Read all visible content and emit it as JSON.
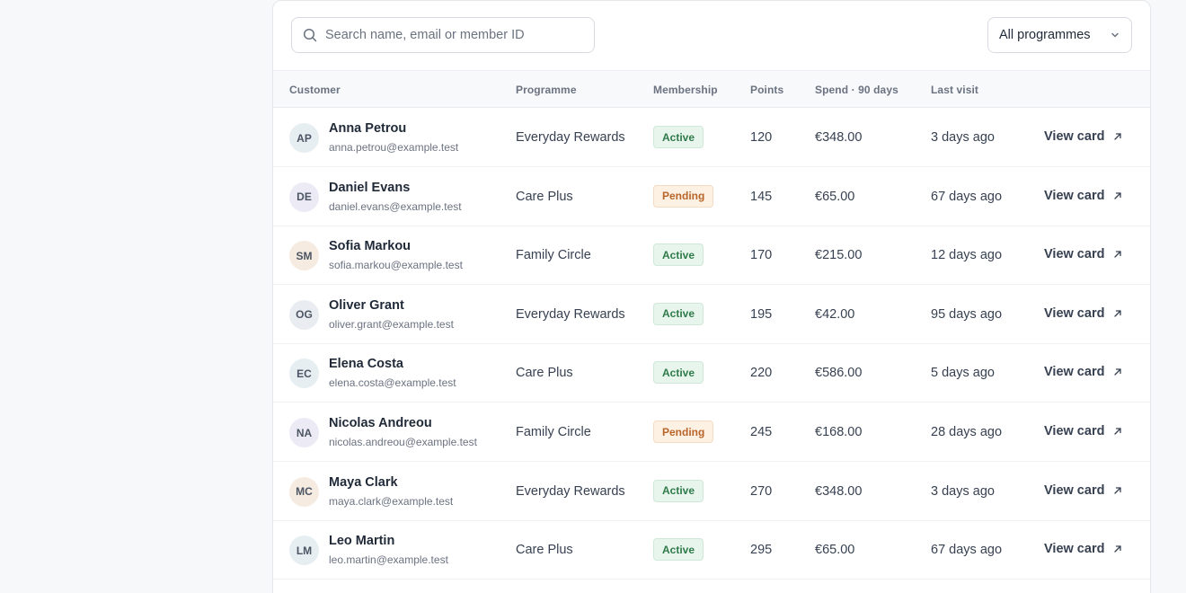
{
  "toolbar": {
    "search_placeholder": "Search name, email or member ID",
    "programme_filter": "All programmes"
  },
  "columns": {
    "customer": "Customer",
    "programme": "Programme",
    "membership": "Membership",
    "points": "Points",
    "spend": "Spend · 90 days",
    "last_visit": "Last visit"
  },
  "rows": [
    {
      "initials": "AP",
      "name": "Anna Petrou",
      "email": "anna.petrou@example.test",
      "programme": "Everyday Rewards",
      "membership": "Active",
      "points": "120",
      "spend": "€348.00",
      "last_visit": "3 days ago",
      "action": "View card",
      "avatar_color": "#e6eef2"
    },
    {
      "initials": "DE",
      "name": "Daniel Evans",
      "email": "daniel.evans@example.test",
      "programme": "Care Plus",
      "membership": "Pending",
      "points": "145",
      "spend": "€65.00",
      "last_visit": "67 days ago",
      "action": "View card",
      "avatar_color": "#ecebf5"
    },
    {
      "initials": "SM",
      "name": "Sofia Markou",
      "email": "sofia.markou@example.test",
      "programme": "Family Circle",
      "membership": "Active",
      "points": "170",
      "spend": "€215.00",
      "last_visit": "12 days ago",
      "action": "View card",
      "avatar_color": "#f6ebe0"
    },
    {
      "initials": "OG",
      "name": "Oliver Grant",
      "email": "oliver.grant@example.test",
      "programme": "Everyday Rewards",
      "membership": "Active",
      "points": "195",
      "spend": "€42.00",
      "last_visit": "95 days ago",
      "action": "View card",
      "avatar_color": "#e9ecf0"
    },
    {
      "initials": "EC",
      "name": "Elena Costa",
      "email": "elena.costa@example.test",
      "programme": "Care Plus",
      "membership": "Active",
      "points": "220",
      "spend": "€586.00",
      "last_visit": "5 days ago",
      "action": "View card",
      "avatar_color": "#e6eef2"
    },
    {
      "initials": "NA",
      "name": "Nicolas Andreou",
      "email": "nicolas.andreou@example.test",
      "programme": "Family Circle",
      "membership": "Pending",
      "points": "245",
      "spend": "€168.00",
      "last_visit": "28 days ago",
      "action": "View card",
      "avatar_color": "#ecebf5"
    },
    {
      "initials": "MC",
      "name": "Maya Clark",
      "email": "maya.clark@example.test",
      "programme": "Everyday Rewards",
      "membership": "Active",
      "points": "270",
      "spend": "€348.00",
      "last_visit": "3 days ago",
      "action": "View card",
      "avatar_color": "#f6ebe0"
    },
    {
      "initials": "LM",
      "name": "Leo Martin",
      "email": "leo.martin@example.test",
      "programme": "Care Plus",
      "membership": "Active",
      "points": "295",
      "spend": "€65.00",
      "last_visit": "67 days ago",
      "action": "View card",
      "avatar_color": "#e6eef2"
    }
  ]
}
